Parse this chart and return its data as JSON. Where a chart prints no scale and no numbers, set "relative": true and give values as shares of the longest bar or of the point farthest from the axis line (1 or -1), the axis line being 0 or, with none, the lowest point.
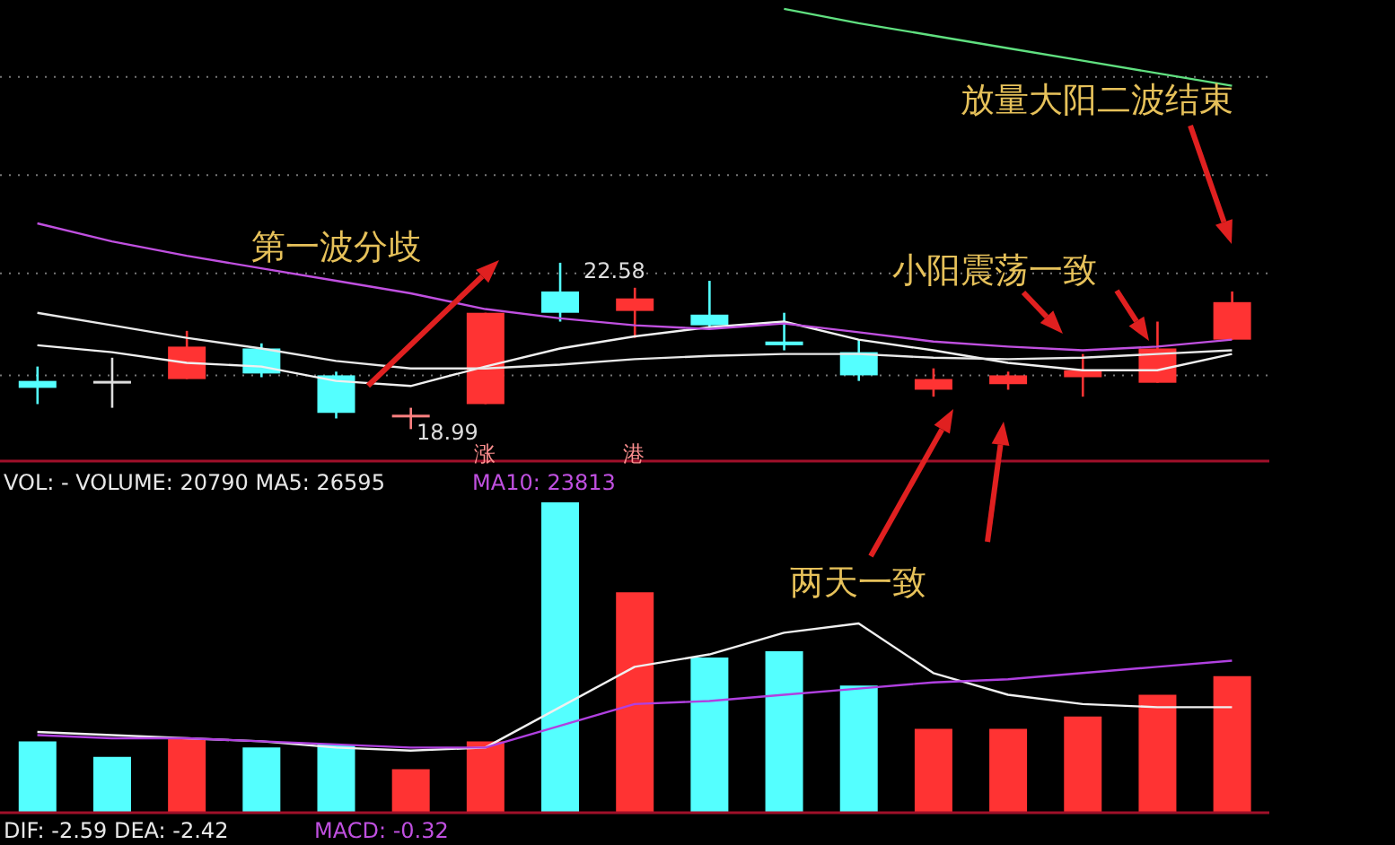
{
  "chart_data": [
    {
      "type": "candlestick",
      "categories": [
        null,
        null,
        null,
        null,
        null,
        null,
        null,
        null,
        null,
        null,
        null,
        null,
        null,
        null,
        null,
        null,
        null
      ],
      "ohlc": [
        [
          20.03,
          20.34,
          19.53,
          19.88
        ],
        [
          20.03,
          20.53,
          19.45,
          20.03
        ],
        [
          20.07,
          21.11,
          20.07,
          20.77
        ],
        [
          20.73,
          20.84,
          20.11,
          20.19
        ],
        [
          20.15,
          20.23,
          19.22,
          19.34
        ],
        [
          19.3,
          19.45,
          18.99,
          19.3
        ],
        [
          19.53,
          21.5,
          19.53,
          21.5
        ],
        [
          21.96,
          22.58,
          21.31,
          21.5
        ],
        [
          21.54,
          22.04,
          20.96,
          21.81
        ],
        [
          21.46,
          22.19,
          21.19,
          21.23
        ],
        [
          20.88,
          21.5,
          20.69,
          20.8
        ],
        [
          20.65,
          20.92,
          20.03,
          20.15
        ],
        [
          19.84,
          20.3,
          19.69,
          20.07
        ],
        [
          19.96,
          20.23,
          19.84,
          20.15
        ],
        [
          20.11,
          20.61,
          19.69,
          20.26
        ],
        [
          19.99,
          21.31,
          19.99,
          20.73
        ],
        [
          20.92,
          21.96,
          20.92,
          21.73
        ]
      ],
      "colors": [
        "#54ffff",
        "#dddddd",
        "#ff3333",
        "#54ffff",
        "#54ffff",
        "#ff8080",
        "#ff3333",
        "#54ffff",
        "#ff3333",
        "#54ffff",
        "#54ffff",
        "#54ffff",
        "#ff3333",
        "#ff3333",
        "#ff3333",
        "#ff3333",
        "#ff3333"
      ],
      "series": [
        {
          "type": "line",
          "color": "#f0f0f0",
          "values": [
            20.8,
            20.65,
            20.42,
            20.34,
            20.03,
            19.92,
            20.34,
            20.73,
            20.99,
            21.19,
            21.31,
            20.92,
            20.69,
            20.42,
            20.26,
            20.26,
            20.61
          ]
        },
        {
          "type": "line",
          "color": "#e8e8e8",
          "values": [
            21.5,
            21.23,
            20.96,
            20.73,
            20.46,
            20.3,
            20.3,
            20.38,
            20.5,
            20.57,
            20.61,
            20.61,
            20.53,
            20.5,
            20.53,
            20.61,
            20.69
          ]
        },
        {
          "type": "line",
          "color": "#c050e0",
          "values": [
            23.43,
            23.04,
            22.73,
            22.46,
            22.19,
            21.92,
            21.58,
            21.38,
            21.23,
            21.15,
            21.27,
            21.08,
            20.88,
            20.77,
            20.69,
            20.77,
            20.92
          ]
        },
        {
          "type": "line",
          "color": "#60e080",
          "values": [
            null,
            null,
            null,
            null,
            null,
            null,
            null,
            null,
            null,
            null,
            28.06,
            27.75,
            27.48,
            27.21,
            26.94,
            26.67,
            26.4
          ]
        }
      ],
      "ylim": [
        18.3,
        28.25
      ],
      "yticks": [
        {
          "value": 20.15,
          "label": null
        },
        {
          "value": 22.35,
          "label": null
        },
        {
          "value": 24.47,
          "label": null
        },
        {
          "value": 26.59,
          "label": null
        }
      ],
      "grid": "y",
      "annotations": [
        "第一波分歧",
        "小阳震荡一致",
        "放量大阳二波结束",
        "两天一致",
        "22.58",
        "18.99",
        "涨",
        "港"
      ]
    },
    {
      "type": "bar",
      "relative": true,
      "categories": [
        null,
        null,
        null,
        null,
        null,
        null,
        null,
        null,
        null,
        null,
        null,
        null,
        null,
        null,
        null,
        null,
        null
      ],
      "series": [
        {
          "type": "bar",
          "colors": [
            "#54ffff",
            "#54ffff",
            "#ff3333",
            "#54ffff",
            "#54ffff",
            "#ff3333",
            "#ff3333",
            "#54ffff",
            "#ff3333",
            "#54ffff",
            "#54ffff",
            "#54ffff",
            "#ff3333",
            "#ff3333",
            "#ff3333",
            "#ff3333",
            "#ff3333"
          ],
          "values": [
            0.23,
            0.18,
            0.24,
            0.21,
            0.22,
            0.14,
            0.23,
            1,
            0.71,
            0.5,
            0.52,
            0.41,
            0.27,
            0.27,
            0.31,
            0.38,
            0.44
          ]
        },
        {
          "type": "line",
          "color": "#f0f0f0",
          "values": [
            0.26,
            0.25,
            0.24,
            0.23,
            0.21,
            0.2,
            0.21,
            0.34,
            0.47,
            0.51,
            0.58,
            0.61,
            0.45,
            0.38,
            0.35,
            0.34,
            0.34
          ]
        },
        {
          "type": "line",
          "color": "#b040e0",
          "values": [
            0.25,
            0.24,
            0.24,
            0.23,
            0.22,
            0.21,
            0.21,
            0.28,
            0.35,
            0.36,
            0.38,
            0.4,
            0.42,
            0.43,
            0.45,
            0.47,
            0.49
          ]
        }
      ],
      "annotations": [
        "VOL: - VOLUME: 20790 MA5: 26595",
        "MA10: 23813",
        "DIF: -2.59 DEA: -2.42",
        "MACD: -0.32"
      ]
    }
  ]
}
